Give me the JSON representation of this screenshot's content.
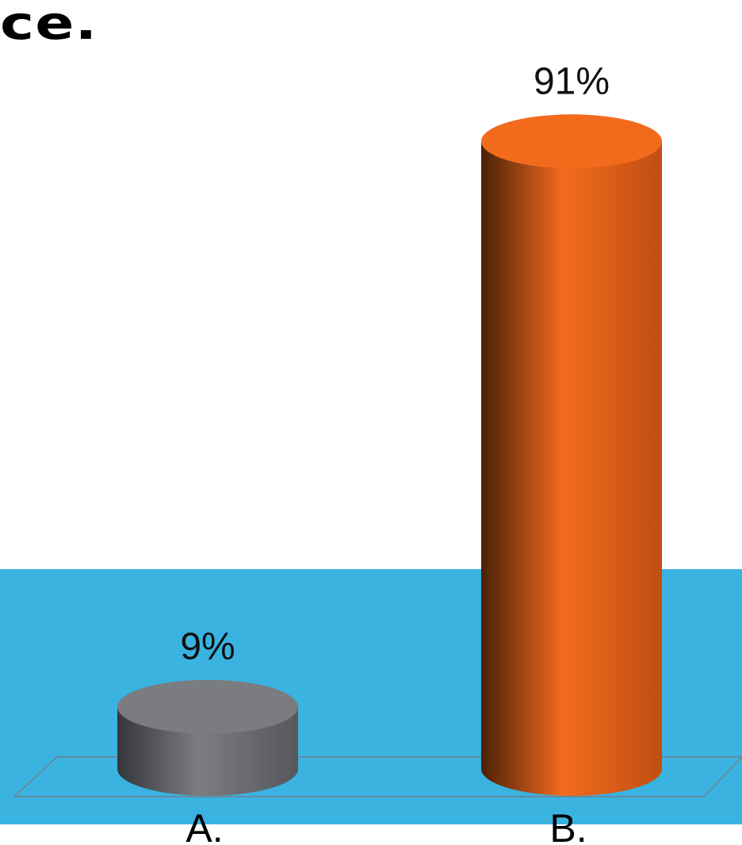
{
  "title_fragment": "ce.",
  "colors": {
    "floor": "#3AB3E1",
    "bar_a": "#7A7C80",
    "bar_b": "#F26B1D",
    "background": "#FFFFFF"
  },
  "chart_data": {
    "type": "bar",
    "style": "3d-cylinder",
    "categories": [
      "A.",
      "B."
    ],
    "values": [
      9,
      91
    ],
    "value_labels": [
      "9%",
      "91%"
    ],
    "unit": "%",
    "ylim": [
      0,
      100
    ],
    "title": "",
    "xlabel": "",
    "ylabel": "",
    "grid": false,
    "legend": "none"
  }
}
